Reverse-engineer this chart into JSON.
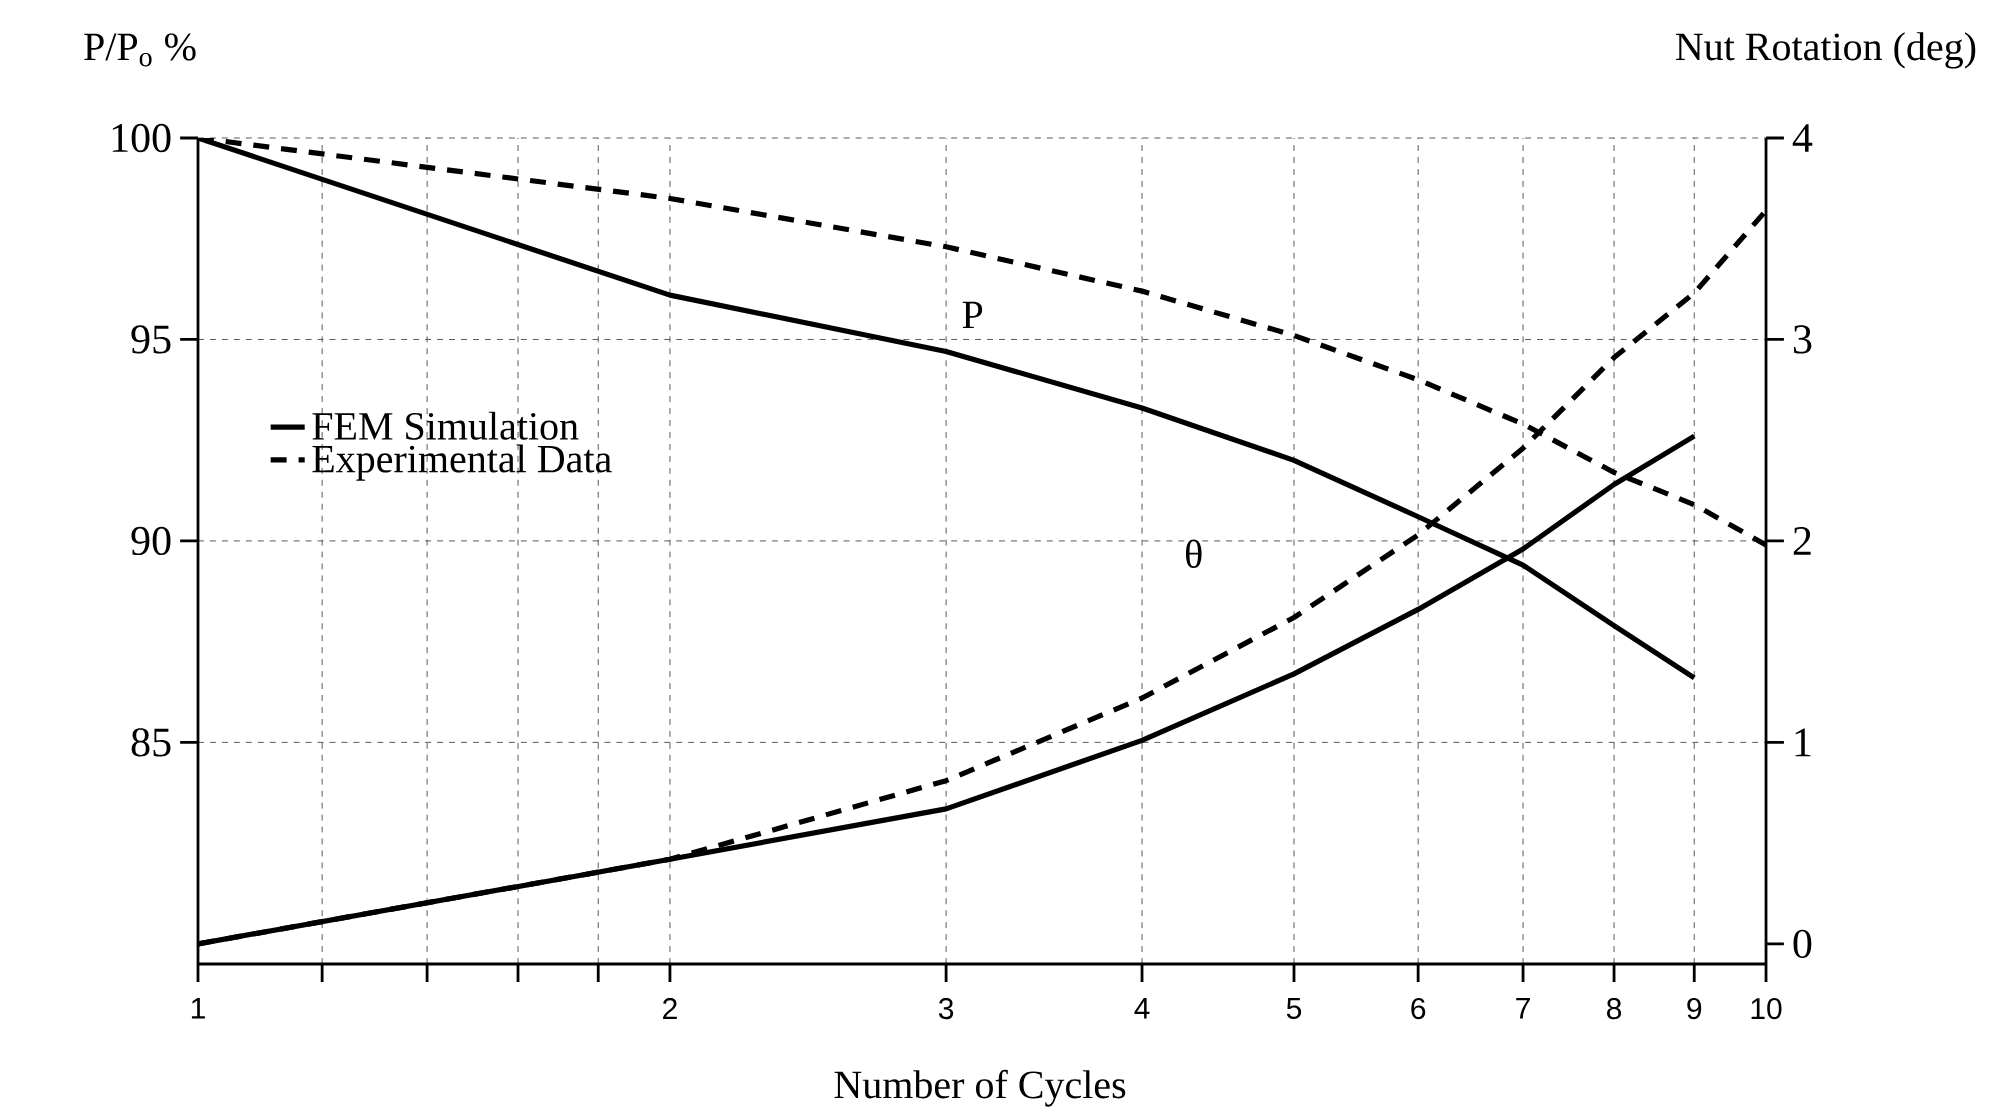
{
  "chart_data": {
    "type": "line",
    "xlabel": "Number of Cycles",
    "ylabel": "P/P$_{o}$ %",
    "y2label": "Nut Rotation (deg)",
    "log": "x",
    "grid": true,
    "legend": "left",
    "marker": "none",
    "xlim": [
      1,
      10
    ],
    "xticks": [
      1,
      {
        "value": 1.2,
        "label": null
      },
      {
        "value": 1.4,
        "label": null
      },
      {
        "value": 1.6,
        "label": null
      },
      {
        "value": 1.8,
        "label": null
      },
      2,
      3,
      4,
      5,
      6,
      7,
      8,
      9,
      10
    ],
    "ylim": [
      79.5,
      100
    ],
    "yticks": [
      85,
      90,
      95,
      100
    ],
    "y2lim": [
      -0.1,
      4
    ],
    "y2ticks": [
      0,
      1,
      2,
      3,
      4
    ],
    "series": [
      {
        "name": "FEM Simulation",
        "color": "#000000",
        "line_style": "solid",
        "x": [
          1,
          2,
          3,
          4,
          5,
          6,
          7,
          8,
          9
        ],
        "values": [
          100,
          96.1,
          94.7,
          93.3,
          92.0,
          90.6,
          89.4,
          87.9,
          86.6
        ]
      },
      {
        "name": "Experimental Data",
        "color": "#000000",
        "line_style": "dashed",
        "x": [
          1,
          2,
          3,
          4,
          5,
          6,
          7,
          8,
          9,
          10
        ],
        "values": [
          100,
          98.5,
          97.3,
          96.2,
          95.1,
          94.0,
          92.9,
          91.7,
          90.9,
          89.9
        ]
      },
      {
        "color": "#000000",
        "line_style": "solid",
        "axis": "y2",
        "x": [
          1,
          2,
          3,
          4,
          5,
          6,
          7,
          8,
          9
        ],
        "values": [
          0.0,
          0.42,
          0.67,
          1.01,
          1.34,
          1.66,
          1.96,
          2.28,
          2.52
        ]
      },
      {
        "color": "#000000",
        "line_style": "dashed",
        "axis": "y2",
        "x": [
          1,
          2,
          3,
          4,
          5,
          6,
          7,
          8,
          9,
          10
        ],
        "values": [
          0.0,
          0.42,
          0.81,
          1.22,
          1.62,
          2.03,
          2.46,
          2.91,
          3.23,
          3.64
        ]
      }
    ],
    "annotations": [
      "P",
      "θ"
    ]
  }
}
